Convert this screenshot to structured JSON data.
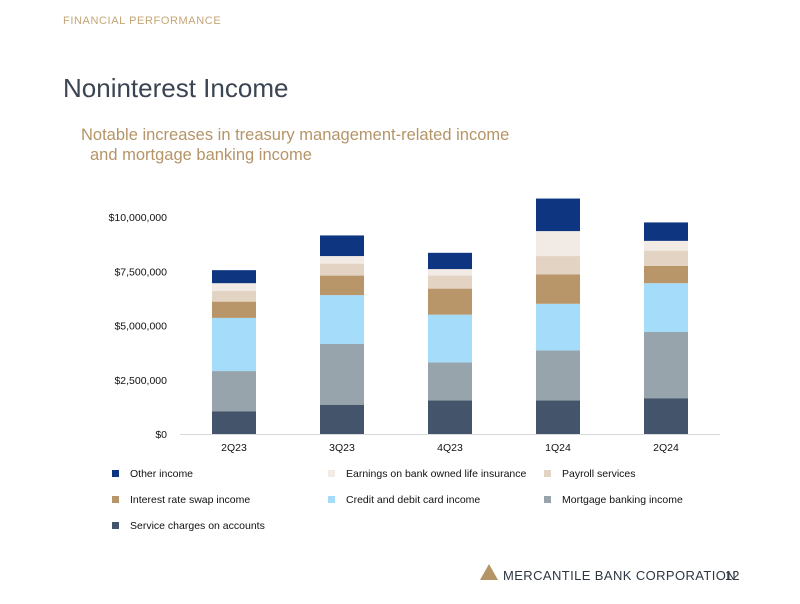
{
  "header": {
    "section_label": "FINANCIAL PERFORMANCE",
    "title": "Noninterest Income",
    "subtitle_line1": "Notable increases in treasury management-related income",
    "subtitle_line2": "and mortgage banking income"
  },
  "chart_data": {
    "type": "bar",
    "stacked": true,
    "title": "",
    "xlabel": "",
    "ylabel": "",
    "ylim": [
      0,
      11000000
    ],
    "yticks": [
      0,
      2500000,
      5000000,
      7500000,
      10000000
    ],
    "ytick_labels": [
      "$0",
      "$2,500,000",
      "$5,000,000",
      "$7,500,000",
      "$10,000,000"
    ],
    "categories": [
      "2Q23",
      "3Q23",
      "4Q23",
      "1Q24",
      "2Q24"
    ],
    "legend_position": "bottom",
    "series": [
      {
        "name": "Service charges on accounts",
        "color": "#44546a",
        "values": [
          1050000,
          1350000,
          1550000,
          1550000,
          1650000
        ]
      },
      {
        "name": "Mortgage banking income",
        "color": "#98a4ac",
        "values": [
          1850000,
          2800000,
          1750000,
          2300000,
          3050000
        ]
      },
      {
        "name": "Credit and debit card income",
        "color": "#a5dcfa",
        "values": [
          2450000,
          2250000,
          2200000,
          2150000,
          2250000
        ]
      },
      {
        "name": "Interest rate swap income",
        "color": "#b9966a",
        "values": [
          750000,
          900000,
          1200000,
          1350000,
          800000
        ]
      },
      {
        "name": "Payroll services",
        "color": "#e3d3c2",
        "values": [
          500000,
          550000,
          600000,
          850000,
          700000
        ]
      },
      {
        "name": "Earnings on bank owned life insurance",
        "color": "#f2eae4",
        "values": [
          350000,
          350000,
          300000,
          1150000,
          450000
        ]
      },
      {
        "name": "Other income",
        "color": "#0d3580",
        "values": [
          600000,
          950000,
          750000,
          1500000,
          850000
        ]
      }
    ]
  },
  "legend": {
    "items": [
      {
        "label": "Other income",
        "color": "#0d3580"
      },
      {
        "label": "Earnings on bank owned life insurance",
        "color": "#f2eae4"
      },
      {
        "label": "Payroll services",
        "color": "#e3d3c2"
      },
      {
        "label": "Interest rate swap income",
        "color": "#b9966a"
      },
      {
        "label": "Credit and debit card income",
        "color": "#a5dcfa"
      },
      {
        "label": "Mortgage banking income",
        "color": "#98a4ac"
      },
      {
        "label": "Service charges on accounts",
        "color": "#44546a"
      }
    ]
  },
  "footer": {
    "brand": "MERCANTILE BANK CORPORATION",
    "page_number": "12",
    "logo_color": "#b59467"
  },
  "colors": {
    "title": "#3a4452",
    "accent_gold": "#b59467",
    "axis": "#d9d9d9"
  }
}
